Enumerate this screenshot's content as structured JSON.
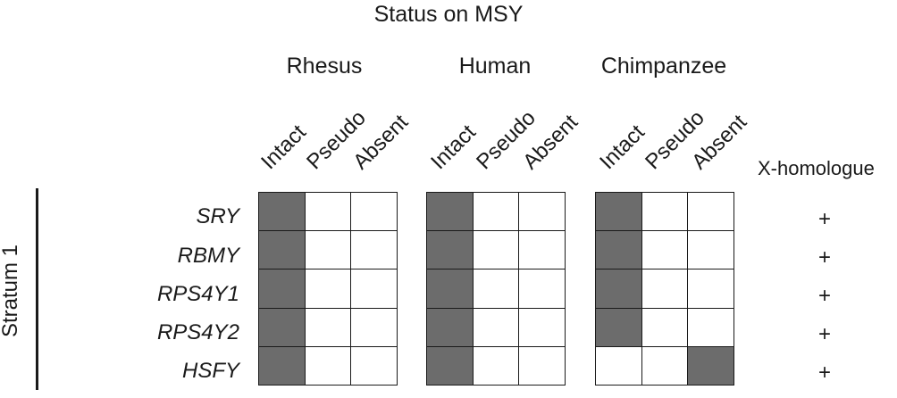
{
  "title": "Status on MSY",
  "x_homologue_label": "X-homologue",
  "stratum_label": "Stratum 1",
  "columns": [
    "Intact",
    "Pseudo",
    "Absent"
  ],
  "fill_color": "#6c6c6c",
  "species": [
    {
      "name": "Rhesus",
      "status": [
        "Intact",
        "Intact",
        "Intact",
        "Intact",
        "Intact"
      ]
    },
    {
      "name": "Human",
      "status": [
        "Intact",
        "Intact",
        "Intact",
        "Intact",
        "Intact"
      ]
    },
    {
      "name": "Chimpanzee",
      "status": [
        "Intact",
        "Intact",
        "Intact",
        "Intact",
        "Absent"
      ]
    }
  ],
  "genes": [
    {
      "name": "SRY",
      "x_homologue": "+"
    },
    {
      "name": "RBMY",
      "x_homologue": "+"
    },
    {
      "name": "RPS4Y1",
      "x_homologue": "+"
    },
    {
      "name": "RPS4Y2",
      "x_homologue": "+"
    },
    {
      "name": "HSFY",
      "x_homologue": "+"
    }
  ]
}
